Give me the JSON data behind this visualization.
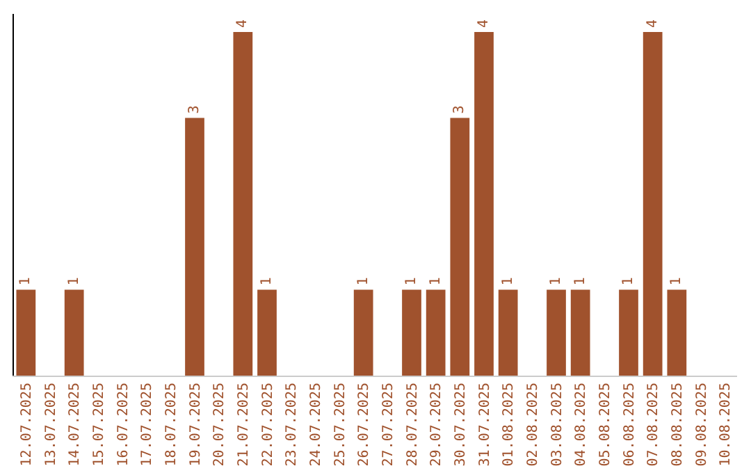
{
  "chart_data": {
    "type": "bar",
    "categories": [
      "12.07.2025",
      "13.07.2025",
      "14.07.2025",
      "15.07.2025",
      "16.07.2025",
      "17.07.2025",
      "18.07.2025",
      "19.07.2025",
      "20.07.2025",
      "21.07.2025",
      "22.07.2025",
      "23.07.2025",
      "24.07.2025",
      "25.07.2025",
      "26.07.2025",
      "27.07.2025",
      "28.07.2025",
      "29.07.2025",
      "30.07.2025",
      "31.07.2025",
      "01.08.2025",
      "02.08.2025",
      "03.08.2025",
      "04.08.2025",
      "05.08.2025",
      "06.08.2025",
      "07.08.2025",
      "08.08.2025",
      "09.08.2025",
      "10.08.2025"
    ],
    "values": [
      1,
      0,
      1,
      0,
      0,
      0,
      0,
      3,
      0,
      4,
      1,
      0,
      0,
      0,
      1,
      0,
      1,
      1,
      3,
      4,
      1,
      0,
      1,
      1,
      0,
      1,
      4,
      1,
      0,
      0
    ],
    "value_labels": [
      "1",
      null,
      "1",
      null,
      null,
      null,
      null,
      "3",
      null,
      "4",
      "1",
      null,
      null,
      null,
      "1",
      null,
      "1",
      "1",
      "3",
      "4",
      "1",
      null,
      "1",
      "1",
      null,
      "1",
      "4",
      "1",
      null,
      null
    ],
    "color": "#a0522d",
    "grid": false,
    "legend": false,
    "tick_labels": "x"
  }
}
